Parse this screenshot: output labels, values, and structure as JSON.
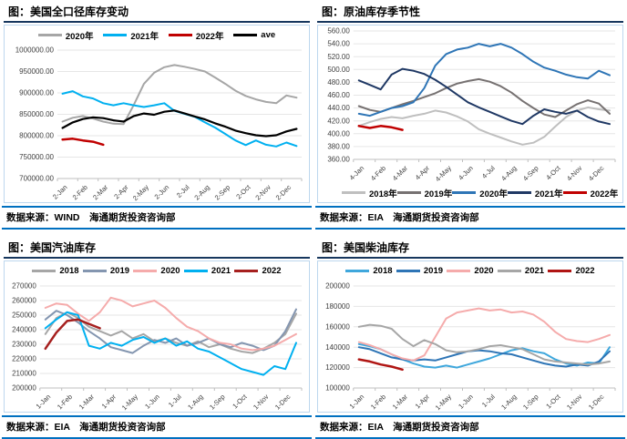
{
  "colors": {
    "title_underline": "#17375e",
    "chart_border": "#bdd7ee",
    "footer_line": "#0070c0",
    "gridline": "#e6e6e6",
    "axis": "#bfbfbf"
  },
  "panels": [
    {
      "title": "图：美国全口径库存变动",
      "footer": "数据来源：WIND　海通期货投资咨询部",
      "chart_data": {
        "type": "line",
        "legend_position": "top",
        "grid": true,
        "categories": [
          "2-Jan",
          "2-Feb",
          "2-Mar",
          "2-Apr",
          "2-May",
          "2-Jun",
          "2-Jul",
          "2-Aug",
          "2-Sep",
          "2-Oct",
          "2-Nov",
          "2-Dec"
        ],
        "yticks": [
          "1000000.00",
          "950000.00",
          "900000.00",
          "850000.00",
          "800000.00",
          "750000.00",
          "700000.00"
        ],
        "ylim": [
          700000,
          1000000
        ],
        "series": [
          {
            "name": "2020年",
            "color": "#a6a6a6",
            "values": [
              833000,
              842000,
              846000,
              840000,
              833000,
              828000,
              827000,
              872000,
              921000,
              947000,
              960000,
              965000,
              961000,
              956000,
              950000,
              936000,
              921000,
              905000,
              893000,
              885000,
              879000,
              876000,
              894000,
              889000
            ]
          },
          {
            "name": "2021年",
            "color": "#00b0f0",
            "values": [
              898000,
              904000,
              892000,
              887000,
              876000,
              871000,
              876000,
              871000,
              867000,
              871000,
              876000,
              858000,
              851000,
              844000,
              831000,
              819000,
              804000,
              789000,
              778000,
              789000,
              779000,
              775000,
              784000,
              776000
            ]
          },
          {
            "name": "2022年",
            "color": "#c00000",
            "width": 2.5,
            "values": [
              791000,
              793000,
              789000,
              786000,
              779000
            ]
          },
          {
            "name": "ave",
            "color": "#000000",
            "width": 2.2,
            "values": [
              818000,
              831000,
              839000,
              843000,
              841000,
              836000,
              833000,
              846000,
              852000,
              849000,
              856000,
              859000,
              852000,
              845000,
              838000,
              829000,
              821000,
              812000,
              806000,
              801000,
              799000,
              801000,
              810000,
              816000
            ]
          }
        ]
      }
    },
    {
      "title": "图：原油库存季节性",
      "footer": "数据来源：EIA　海通期货投资咨询部",
      "chart_data": {
        "type": "line",
        "legend_position": "bottom",
        "grid": true,
        "categories": [
          "4-Jan",
          "4-Feb",
          "4-Mar",
          "4-Apr",
          "4-May",
          "4-Jun",
          "4-Jul",
          "4-Aug",
          "4-Sep",
          "4-Oct",
          "4-Nov",
          "4-Dec"
        ],
        "yticks": [
          "560.00",
          "540.00",
          "520.00",
          "500.00",
          "480.00",
          "460.00",
          "440.00",
          "420.00",
          "400.00",
          "380.00",
          "360.00"
        ],
        "ylim": [
          360,
          560
        ],
        "series": [
          {
            "name": "2018年",
            "color": "#bfbfbf",
            "values": [
              412,
              418,
              423,
              426,
              424,
              428,
              431,
              436,
              433,
              427,
              419,
              407,
              400,
              394,
              388,
              383,
              386,
              395,
              411,
              426,
              436,
              441,
              438,
              436
            ]
          },
          {
            "name": "2019年",
            "color": "#767171",
            "values": [
              443,
              437,
              434,
              440,
              446,
              451,
              457,
              463,
              471,
              478,
              482,
              485,
              481,
              474,
              464,
              451,
              440,
              430,
              426,
              436,
              446,
              452,
              447,
              431
            ]
          },
          {
            "name": "2020年",
            "color": "#2e75b6",
            "values": [
              431,
              428,
              434,
              440,
              443,
              449,
              471,
              506,
              524,
              531,
              534,
              540,
              536,
              540,
              534,
              524,
              512,
              503,
              498,
              492,
              488,
              486,
              498,
              491
            ]
          },
          {
            "name": "2021年",
            "color": "#1f3864",
            "values": [
              483,
              476,
              469,
              492,
              501,
              498,
              493,
              484,
              473,
              461,
              449,
              441,
              434,
              427,
              420,
              415,
              428,
              438,
              434,
              431,
              436,
              426,
              419,
              415
            ]
          },
          {
            "name": "2022年",
            "color": "#c00000",
            "width": 2.5,
            "values": [
              412,
              409,
              412,
              410,
              406
            ]
          }
        ]
      }
    },
    {
      "title": "图：美国汽油库存",
      "footer": "数据来源：EIA　海通期货投资咨询部",
      "chart_data": {
        "type": "line",
        "legend_position": "top",
        "grid": true,
        "categories": [
          "1-Jan",
          "1-Feb",
          "1-Mar",
          "1-Apr",
          "1-May",
          "1-Jun",
          "1-Jul",
          "1-Aug",
          "1-Sep",
          "1-Oct",
          "1-Nov",
          "1-Dec"
        ],
        "yticks": [
          "270000",
          "260000",
          "250000",
          "240000",
          "230000",
          "220000",
          "210000",
          "200000"
        ],
        "ylim": [
          200000,
          270000
        ],
        "series": [
          {
            "name": "2018",
            "color": "#a6a6a6",
            "values": [
              237000,
              248000,
              252000,
              248000,
              242000,
              239000,
              236000,
              239000,
              234000,
              237000,
              232000,
              234000,
              231000,
              229000,
              232000,
              228000,
              230000,
              227000,
              225000,
              224000,
              227000,
              231000,
              237000,
              251000
            ]
          },
          {
            "name": "2019",
            "color": "#8496b0",
            "values": [
              247000,
              253000,
              250000,
              245000,
              239000,
              234000,
              228000,
              226000,
              224000,
              229000,
              233000,
              231000,
              234000,
              229000,
              231000,
              234000,
              230000,
              228000,
              231000,
              229000,
              226000,
              229000,
              239000,
              254000
            ]
          },
          {
            "name": "2020",
            "color": "#f5abab",
            "values": [
              255000,
              258000,
              257000,
              251000,
              246000,
              252000,
              262000,
              260000,
              256000,
              258000,
              260000,
              255000,
              248000,
              242000,
              239000,
              234000,
              231000,
              230000,
              227000,
              226000,
              227000,
              229000,
              233000,
              237000
            ]
          },
          {
            "name": "2021",
            "color": "#00b0f0",
            "values": [
              241000,
              247000,
              252000,
              250000,
              229000,
              227000,
              231000,
              229000,
              233000,
              235000,
              231000,
              234000,
              229000,
              232000,
              227000,
              225000,
              221000,
              217000,
              213000,
              211000,
              209000,
              215000,
              213000,
              231000
            ]
          },
          {
            "name": "2022",
            "color": "#a6201f",
            "width": 2.5,
            "values": [
              227000,
              238000,
              246000,
              247000,
              244000,
              241000
            ]
          }
        ]
      }
    },
    {
      "title": "图：美国柴油库存",
      "footer": "数据来源：EIA　海通期货投资咨询部",
      "chart_data": {
        "type": "line",
        "legend_position": "top",
        "grid": true,
        "categories": [
          "1-Jan",
          "1-Feb",
          "1-Mar",
          "1-Apr",
          "1-May",
          "1-Jun",
          "1-Jul",
          "1-Aug",
          "1-Sep",
          "1-Oct",
          "1-Nov",
          "1-Dec"
        ],
        "yticks": [
          "200000",
          "180000",
          "160000",
          "140000",
          "120000",
          "100000"
        ],
        "ylim": [
          100000,
          200000
        ],
        "series": [
          {
            "name": "2018",
            "color": "#3fa7dc",
            "values": [
              143000,
              141000,
              138000,
              133000,
              128000,
              124000,
              121000,
              120000,
              122000,
              120000,
              123000,
              126000,
              129000,
              133000,
              137000,
              139000,
              136000,
              134000,
              128000,
              124000,
              122000,
              125000,
              124000,
              140000
            ]
          },
          {
            "name": "2019",
            "color": "#2e75b6",
            "values": [
              140000,
              138000,
              134000,
              130000,
              128000,
              127000,
              128000,
              127000,
              130000,
              133000,
              136000,
              137000,
              136000,
              134000,
              133000,
              130000,
              127000,
              124000,
              122000,
              121000,
              123000,
              122000,
              126000,
              136000
            ]
          },
          {
            "name": "2020",
            "color": "#f5abab",
            "values": [
              145000,
              142000,
              138000,
              133000,
              129000,
              127000,
              132000,
              150000,
              168000,
              174000,
              176000,
              178000,
              176000,
              177000,
              174000,
              175000,
              172000,
              165000,
              155000,
              148000,
              146000,
              145000,
              148000,
              152000
            ]
          },
          {
            "name": "2021",
            "color": "#a6a6a6",
            "values": [
              160000,
              162000,
              161000,
              158000,
              148000,
              141000,
              147000,
              143000,
              137000,
              135000,
              136000,
              138000,
              141000,
              142000,
              140000,
              138000,
              133000,
              128000,
              126000,
              125000,
              124000,
              123000,
              124000,
              126000
            ]
          },
          {
            "name": "2022",
            "color": "#b01513",
            "width": 2.5,
            "values": [
              128000,
              126000,
              123000,
              121000,
              118000
            ]
          }
        ]
      }
    }
  ]
}
